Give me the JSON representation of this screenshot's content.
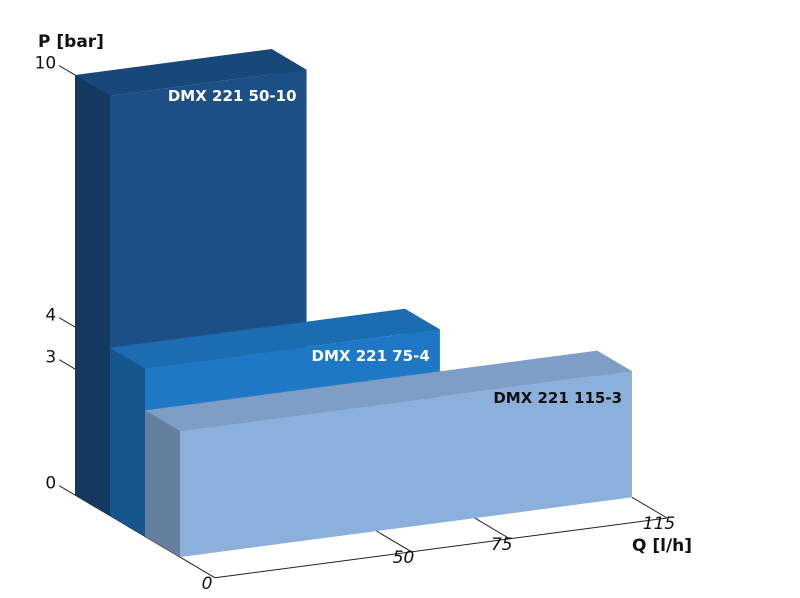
{
  "chart_data": {
    "type": "bar3d",
    "x_label": "Q [l/h]",
    "y_label": "P [bar]",
    "categories": [
      "DMX 221 50-10",
      "DMX 221 75-4",
      "DMX 221 115-3"
    ],
    "x": [
      50,
      75,
      115
    ],
    "values": [
      10,
      4,
      3
    ],
    "colors": [
      "#1b4f86",
      "#1f78c6",
      "#8cb0dc"
    ],
    "xlim": [
      0,
      115
    ],
    "xticks": [
      0,
      50,
      75,
      115
    ],
    "ylim": [
      0,
      10
    ],
    "yticks": [
      0,
      3,
      4,
      10
    ]
  }
}
